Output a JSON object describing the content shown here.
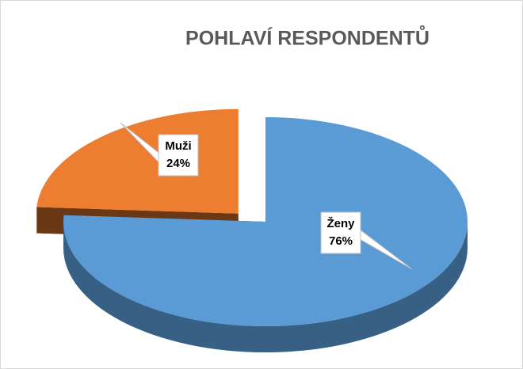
{
  "chart_data": {
    "type": "pie",
    "title": "POHLAVÍ RESPONDENTŮ",
    "categories": [
      "Ženy",
      "Muži"
    ],
    "values": [
      76,
      24
    ],
    "value_labels": [
      "76%",
      "24%"
    ],
    "colors": [
      "#5b9bd5",
      "#ed7d31"
    ]
  }
}
